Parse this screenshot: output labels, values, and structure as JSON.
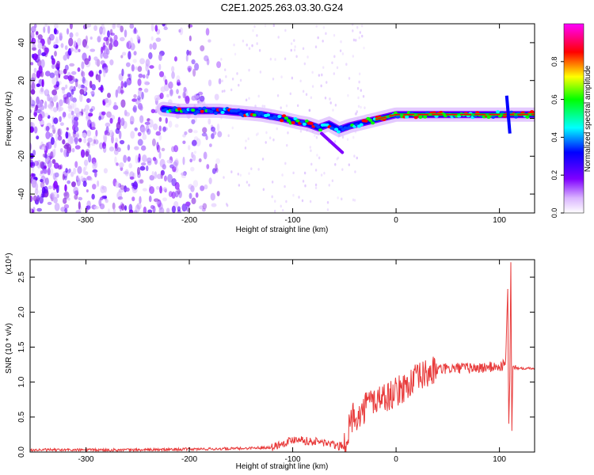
{
  "figure_title": "C2E1.2025.263.03.30.G24",
  "chart_data": [
    {
      "type": "heatmap",
      "xlabel": "Height of straight line (km)",
      "ylabel": "Frequency (Hz)",
      "xlim": [
        -354,
        134
      ],
      "ylim": [
        -50,
        50
      ],
      "x_ticks": [
        -300,
        -200,
        -100,
        0,
        100
      ],
      "y_ticks": [
        -40,
        -20,
        0,
        20,
        40
      ],
      "colorbar": {
        "label": "Normalized spectral amplitude",
        "range": [
          0,
          1
        ],
        "ticks": [
          "0.0",
          "0.2",
          "0.4",
          "0.6",
          "0.8"
        ],
        "colors": [
          "#ffffff",
          "#7f00ff",
          "#0000ff",
          "#00ffff",
          "#00ff00",
          "#ffff00",
          "#ff0000",
          "#ff00ff"
        ]
      },
      "ridge": {
        "x": [
          -225,
          -210,
          -190,
          -170,
          -150,
          -130,
          -110,
          -95,
          -85,
          -75,
          -65,
          -55,
          -45,
          -30,
          -15,
          0,
          20,
          50,
          80,
          100,
          110,
          120,
          134
        ],
        "y": [
          5,
          4,
          4,
          4,
          3,
          2,
          0,
          -2,
          -3,
          -5,
          -3,
          -6,
          -4,
          -2,
          0,
          2,
          2,
          2,
          2,
          2,
          2,
          2,
          2
        ]
      },
      "noise_region_x": [
        -354,
        -170
      ]
    },
    {
      "type": "line",
      "xlabel": "Height of straight line (km)",
      "ylabel": "SNR (10 * v/v)",
      "y_multiplier": "(x10⁴)",
      "xlim": [
        -354,
        134
      ],
      "ylim": [
        0,
        2.75
      ],
      "x_ticks": [
        -300,
        -200,
        -100,
        0,
        100
      ],
      "y_ticks": [
        "0.0",
        "0.5",
        "1.0",
        "1.5",
        "2.0",
        "2.5"
      ],
      "series": [
        {
          "color": "#e83a3a",
          "x": [
            -354,
            -300,
            -250,
            -200,
            -150,
            -120,
            -105,
            -95,
            -85,
            -75,
            -65,
            -55,
            -48,
            -44,
            -40,
            -35,
            -30,
            -25,
            -20,
            -15,
            -10,
            -5,
            0,
            5,
            10,
            20,
            30,
            40,
            60,
            80,
            95,
            102,
            106,
            108,
            109,
            110,
            111,
            112,
            113,
            115,
            120,
            134
          ],
          "y": [
            0.03,
            0.03,
            0.03,
            0.04,
            0.05,
            0.07,
            0.15,
            0.2,
            0.15,
            0.15,
            0.12,
            0.08,
            0.1,
            0.45,
            0.55,
            0.5,
            0.65,
            0.75,
            0.72,
            0.8,
            0.78,
            0.82,
            0.85,
            0.9,
            0.95,
            1.05,
            1.12,
            1.18,
            1.2,
            1.2,
            1.22,
            1.22,
            1.3,
            2.3,
            0.4,
            1.0,
            2.75,
            0.3,
            1.2,
            1.2,
            1.2,
            1.2
          ]
        }
      ]
    }
  ]
}
